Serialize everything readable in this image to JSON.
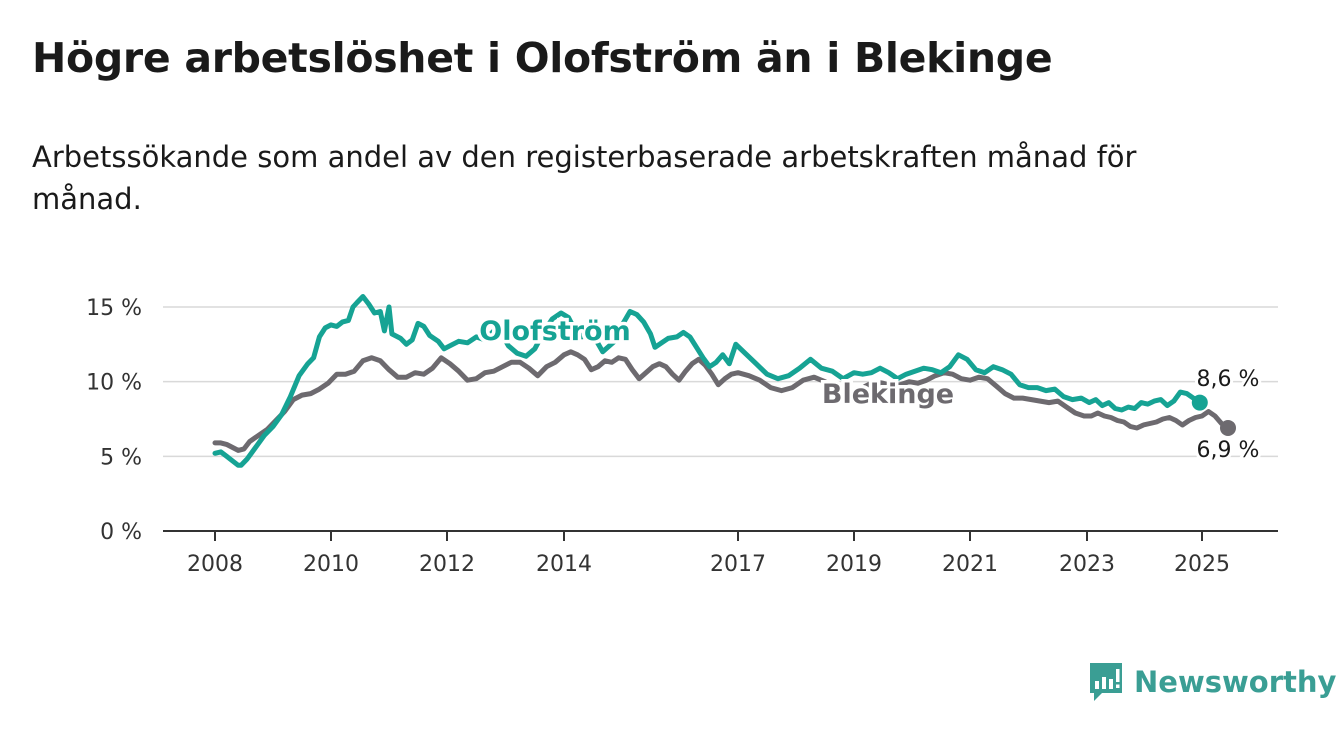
{
  "title": "Högre arbetslöshet i Olofström än i Blekinge",
  "subtitle": "Arbetssökande som andel av den registerbaserade arbetskraften månad för månad.",
  "brand": {
    "name": "Newsworthy",
    "color": "#3a9e94",
    "icon": "bar-chart-exclamation-icon"
  },
  "chart_data": {
    "type": "line",
    "ylim": [
      0,
      15
    ],
    "yticks": [
      0,
      5,
      10,
      15
    ],
    "ytick_labels": [
      "0 %",
      "5 %",
      "10 %",
      "15 %"
    ],
    "xlim": [
      2008,
      2025.6
    ],
    "xticks": [
      2008,
      2010,
      2012,
      2014,
      2017,
      2019,
      2021,
      2023,
      2025
    ],
    "xtick_labels": [
      "2008",
      "2010",
      "2012",
      "2014",
      "2017",
      "2019",
      "2021",
      "2023",
      "2025"
    ],
    "grid": true,
    "series": [
      {
        "name": "Olofström",
        "color": "#16a394",
        "end_label": "8,6 %",
        "points": [
          [
            2008.0,
            5.2
          ],
          [
            2008.1,
            5.3
          ],
          [
            2008.2,
            5.0
          ],
          [
            2008.3,
            4.7
          ],
          [
            2008.4,
            4.4
          ],
          [
            2008.45,
            4.4
          ],
          [
            2008.55,
            4.8
          ],
          [
            2008.7,
            5.6
          ],
          [
            2008.85,
            6.4
          ],
          [
            2009.0,
            7.0
          ],
          [
            2009.15,
            7.8
          ],
          [
            2009.3,
            9.0
          ],
          [
            2009.45,
            10.4
          ],
          [
            2009.6,
            11.2
          ],
          [
            2009.7,
            11.6
          ],
          [
            2009.8,
            13.0
          ],
          [
            2009.9,
            13.6
          ],
          [
            2010.0,
            13.8
          ],
          [
            2010.1,
            13.7
          ],
          [
            2010.2,
            14.0
          ],
          [
            2010.3,
            14.1
          ],
          [
            2010.38,
            15.0
          ],
          [
            2010.45,
            15.3
          ],
          [
            2010.55,
            15.7
          ],
          [
            2010.65,
            15.2
          ],
          [
            2010.75,
            14.6
          ],
          [
            2010.85,
            14.7
          ],
          [
            2010.92,
            13.4
          ],
          [
            2011.0,
            15.0
          ],
          [
            2011.05,
            13.2
          ],
          [
            2011.2,
            12.9
          ],
          [
            2011.3,
            12.5
          ],
          [
            2011.4,
            12.8
          ],
          [
            2011.5,
            13.9
          ],
          [
            2011.6,
            13.7
          ],
          [
            2011.7,
            13.1
          ],
          [
            2011.85,
            12.7
          ],
          [
            2011.95,
            12.2
          ],
          [
            2012.05,
            12.4
          ],
          [
            2012.2,
            12.7
          ],
          [
            2012.35,
            12.6
          ],
          [
            2012.5,
            13.0
          ],
          [
            2012.65,
            12.8
          ],
          [
            2012.8,
            13.4
          ],
          [
            2012.95,
            13.1
          ],
          [
            2013.05,
            12.4
          ],
          [
            2013.2,
            11.9
          ],
          [
            2013.35,
            11.7
          ],
          [
            2013.5,
            12.2
          ],
          [
            2013.65,
            13.3
          ],
          [
            2013.8,
            14.2
          ],
          [
            2013.95,
            14.6
          ],
          [
            2014.1,
            14.3
          ],
          [
            2014.25,
            13.4
          ],
          [
            2014.4,
            13.0
          ],
          [
            2014.55,
            13.2
          ],
          [
            2014.7,
            12.8
          ],
          [
            2014.85,
            12.0
          ],
          [
            2015.0,
            12.4
          ],
          [
            2015.15,
            12.8
          ],
          [
            2015.3,
            13.9
          ],
          [
            2015.45,
            14.7
          ],
          [
            2015.6,
            14.5
          ],
          [
            2015.75,
            14.0
          ],
          [
            2015.9,
            13.2
          ],
          [
            2016.0,
            12.3
          ],
          [
            2016.15,
            12.6
          ],
          [
            2016.3,
            12.9
          ],
          [
            2016.5,
            13.0
          ],
          [
            2016.65,
            13.3
          ],
          [
            2016.8,
            13.0
          ],
          [
            2016.95,
            12.3
          ],
          [
            2017.1,
            11.6
          ],
          [
            2017.25,
            11.0
          ],
          [
            2017.4,
            11.3
          ],
          [
            2017.55,
            11.8
          ],
          [
            2017.7,
            11.2
          ],
          [
            2017.85,
            12.5
          ],
          [
            2018.0,
            11.9
          ],
          [
            2018.15,
            11.2
          ],
          [
            2018.3,
            10.5
          ],
          [
            2018.45,
            10.2
          ],
          [
            2018.6,
            10.4
          ],
          [
            2018.75,
            10.9
          ],
          [
            2018.9,
            11.5
          ],
          [
            2019.05,
            10.9
          ],
          [
            2019.2,
            10.7
          ],
          [
            2019.35,
            10.2
          ],
          [
            2019.5,
            10.6
          ],
          [
            2019.65,
            10.5
          ],
          [
            2019.8,
            10.6
          ],
          [
            2019.95,
            10.9
          ],
          [
            2020.1,
            10.6
          ],
          [
            2020.25,
            10.2
          ],
          [
            2020.4,
            10.5
          ],
          [
            2020.55,
            10.7
          ],
          [
            2020.7,
            10.9
          ],
          [
            2020.85,
            10.8
          ],
          [
            2021.0,
            10.6
          ],
          [
            2021.15,
            11.0
          ],
          [
            2021.3,
            11.8
          ],
          [
            2021.45,
            11.5
          ],
          [
            2021.6,
            10.8
          ],
          [
            2021.75,
            10.6
          ],
          [
            2021.9,
            11.0
          ],
          [
            2022.05,
            10.8
          ],
          [
            2022.2,
            10.5
          ],
          [
            2022.35,
            9.8
          ],
          [
            2022.5,
            9.6
          ],
          [
            2022.65,
            9.6
          ],
          [
            2022.8,
            9.4
          ],
          [
            2022.95,
            9.5
          ],
          [
            2023.1,
            9.0
          ],
          [
            2023.25,
            8.8
          ],
          [
            2023.4,
            8.9
          ],
          [
            2023.55,
            8.6
          ],
          [
            2023.7,
            8.8
          ],
          [
            2023.85,
            8.4
          ],
          [
            2024.0,
            8.6
          ],
          [
            2024.15,
            8.2
          ],
          [
            2024.3,
            8.1
          ],
          [
            2024.45,
            8.3
          ],
          [
            2024.6,
            8.2
          ],
          [
            2024.75,
            8.6
          ],
          [
            2024.9,
            8.5
          ],
          [
            2025.05,
            8.7
          ],
          [
            2025.2,
            8.8
          ],
          [
            2025.35,
            8.4
          ],
          [
            2025.5,
            8.7
          ],
          [
            2025.65,
            9.3
          ],
          [
            2025.8,
            9.2
          ],
          [
            2025.95,
            8.9
          ],
          [
            2026.1,
            8.6
          ]
        ]
      },
      {
        "name": "Blekinge",
        "color": "#6d6a6f",
        "end_label": "6,9 %",
        "points": [
          [
            2008.0,
            5.9
          ],
          [
            2008.1,
            5.9
          ],
          [
            2008.2,
            5.8
          ],
          [
            2008.3,
            5.6
          ],
          [
            2008.4,
            5.4
          ],
          [
            2008.5,
            5.5
          ],
          [
            2008.6,
            6.0
          ],
          [
            2008.75,
            6.4
          ],
          [
            2008.9,
            6.8
          ],
          [
            2009.05,
            7.4
          ],
          [
            2009.2,
            8.0
          ],
          [
            2009.35,
            8.8
          ],
          [
            2009.5,
            9.1
          ],
          [
            2009.65,
            9.2
          ],
          [
            2009.8,
            9.5
          ],
          [
            2009.95,
            9.9
          ],
          [
            2010.1,
            10.5
          ],
          [
            2010.25,
            10.5
          ],
          [
            2010.4,
            10.7
          ],
          [
            2010.55,
            11.4
          ],
          [
            2010.7,
            11.6
          ],
          [
            2010.85,
            11.4
          ],
          [
            2011.0,
            10.8
          ],
          [
            2011.15,
            10.3
          ],
          [
            2011.3,
            10.3
          ],
          [
            2011.45,
            10.6
          ],
          [
            2011.6,
            10.5
          ],
          [
            2011.75,
            10.9
          ],
          [
            2011.9,
            11.6
          ],
          [
            2012.05,
            11.2
          ],
          [
            2012.2,
            10.7
          ],
          [
            2012.35,
            10.1
          ],
          [
            2012.5,
            10.2
          ],
          [
            2012.65,
            10.6
          ],
          [
            2012.8,
            10.7
          ],
          [
            2012.95,
            11.0
          ],
          [
            2013.1,
            11.3
          ],
          [
            2013.25,
            11.3
          ],
          [
            2013.4,
            10.9
          ],
          [
            2013.55,
            10.4
          ],
          [
            2013.7,
            11.0
          ],
          [
            2013.85,
            11.3
          ],
          [
            2014.0,
            11.8
          ],
          [
            2014.15,
            12.0
          ],
          [
            2014.3,
            11.8
          ],
          [
            2014.45,
            11.5
          ],
          [
            2014.6,
            10.8
          ],
          [
            2014.75,
            11.0
          ],
          [
            2014.9,
            11.4
          ],
          [
            2015.05,
            11.3
          ],
          [
            2015.2,
            11.6
          ],
          [
            2015.35,
            11.5
          ],
          [
            2015.5,
            10.8
          ],
          [
            2015.65,
            10.2
          ],
          [
            2015.8,
            10.6
          ],
          [
            2015.95,
            11.0
          ],
          [
            2016.1,
            11.2
          ],
          [
            2016.25,
            11.0
          ],
          [
            2016.4,
            10.5
          ],
          [
            2016.55,
            10.1
          ],
          [
            2016.7,
            10.7
          ],
          [
            2016.85,
            11.2
          ],
          [
            2017.0,
            11.5
          ],
          [
            2017.15,
            11.1
          ],
          [
            2017.3,
            10.5
          ],
          [
            2017.45,
            9.8
          ],
          [
            2017.6,
            10.2
          ],
          [
            2017.75,
            10.5
          ],
          [
            2017.9,
            10.6
          ],
          [
            2018.05,
            10.4
          ],
          [
            2018.2,
            10.1
          ],
          [
            2018.35,
            9.6
          ],
          [
            2018.5,
            9.4
          ],
          [
            2018.65,
            9.6
          ],
          [
            2018.8,
            10.1
          ],
          [
            2018.95,
            10.3
          ],
          [
            2019.1,
            10.0
          ],
          [
            2019.25,
            9.6
          ],
          [
            2019.4,
            9.1
          ],
          [
            2019.55,
            9.3
          ],
          [
            2019.7,
            9.7
          ],
          [
            2019.85,
            10.0
          ],
          [
            2020.0,
            9.9
          ],
          [
            2020.15,
            9.7
          ],
          [
            2020.3,
            9.8
          ],
          [
            2020.45,
            10.0
          ],
          [
            2020.6,
            9.9
          ],
          [
            2020.75,
            10.1
          ],
          [
            2020.9,
            10.4
          ],
          [
            2021.05,
            10.6
          ],
          [
            2021.2,
            10.5
          ],
          [
            2021.35,
            10.2
          ],
          [
            2021.5,
            10.1
          ],
          [
            2021.65,
            10.3
          ],
          [
            2021.8,
            10.2
          ],
          [
            2021.95,
            9.7
          ],
          [
            2022.1,
            9.2
          ],
          [
            2022.25,
            8.9
          ],
          [
            2022.4,
            8.9
          ],
          [
            2022.55,
            8.8
          ],
          [
            2022.7,
            8.7
          ],
          [
            2022.85,
            8.6
          ],
          [
            2023.0,
            8.7
          ],
          [
            2023.15,
            8.3
          ],
          [
            2023.3,
            7.9
          ],
          [
            2023.45,
            7.7
          ],
          [
            2023.6,
            7.7
          ],
          [
            2023.75,
            7.9
          ],
          [
            2023.9,
            7.7
          ],
          [
            2024.05,
            7.6
          ],
          [
            2024.2,
            7.4
          ],
          [
            2024.35,
            7.3
          ],
          [
            2024.5,
            7.0
          ],
          [
            2024.65,
            6.9
          ],
          [
            2024.8,
            7.1
          ],
          [
            2024.95,
            7.2
          ],
          [
            2025.1,
            7.3
          ],
          [
            2025.25,
            7.5
          ],
          [
            2025.4,
            7.6
          ],
          [
            2025.55,
            7.4
          ],
          [
            2025.7,
            7.1
          ],
          [
            2025.85,
            7.4
          ],
          [
            2026.0,
            7.6
          ],
          [
            2026.15,
            7.7
          ],
          [
            2026.3,
            8.0
          ],
          [
            2026.45,
            7.7
          ],
          [
            2026.6,
            7.2
          ],
          [
            2026.75,
            6.9
          ]
        ]
      }
    ]
  }
}
